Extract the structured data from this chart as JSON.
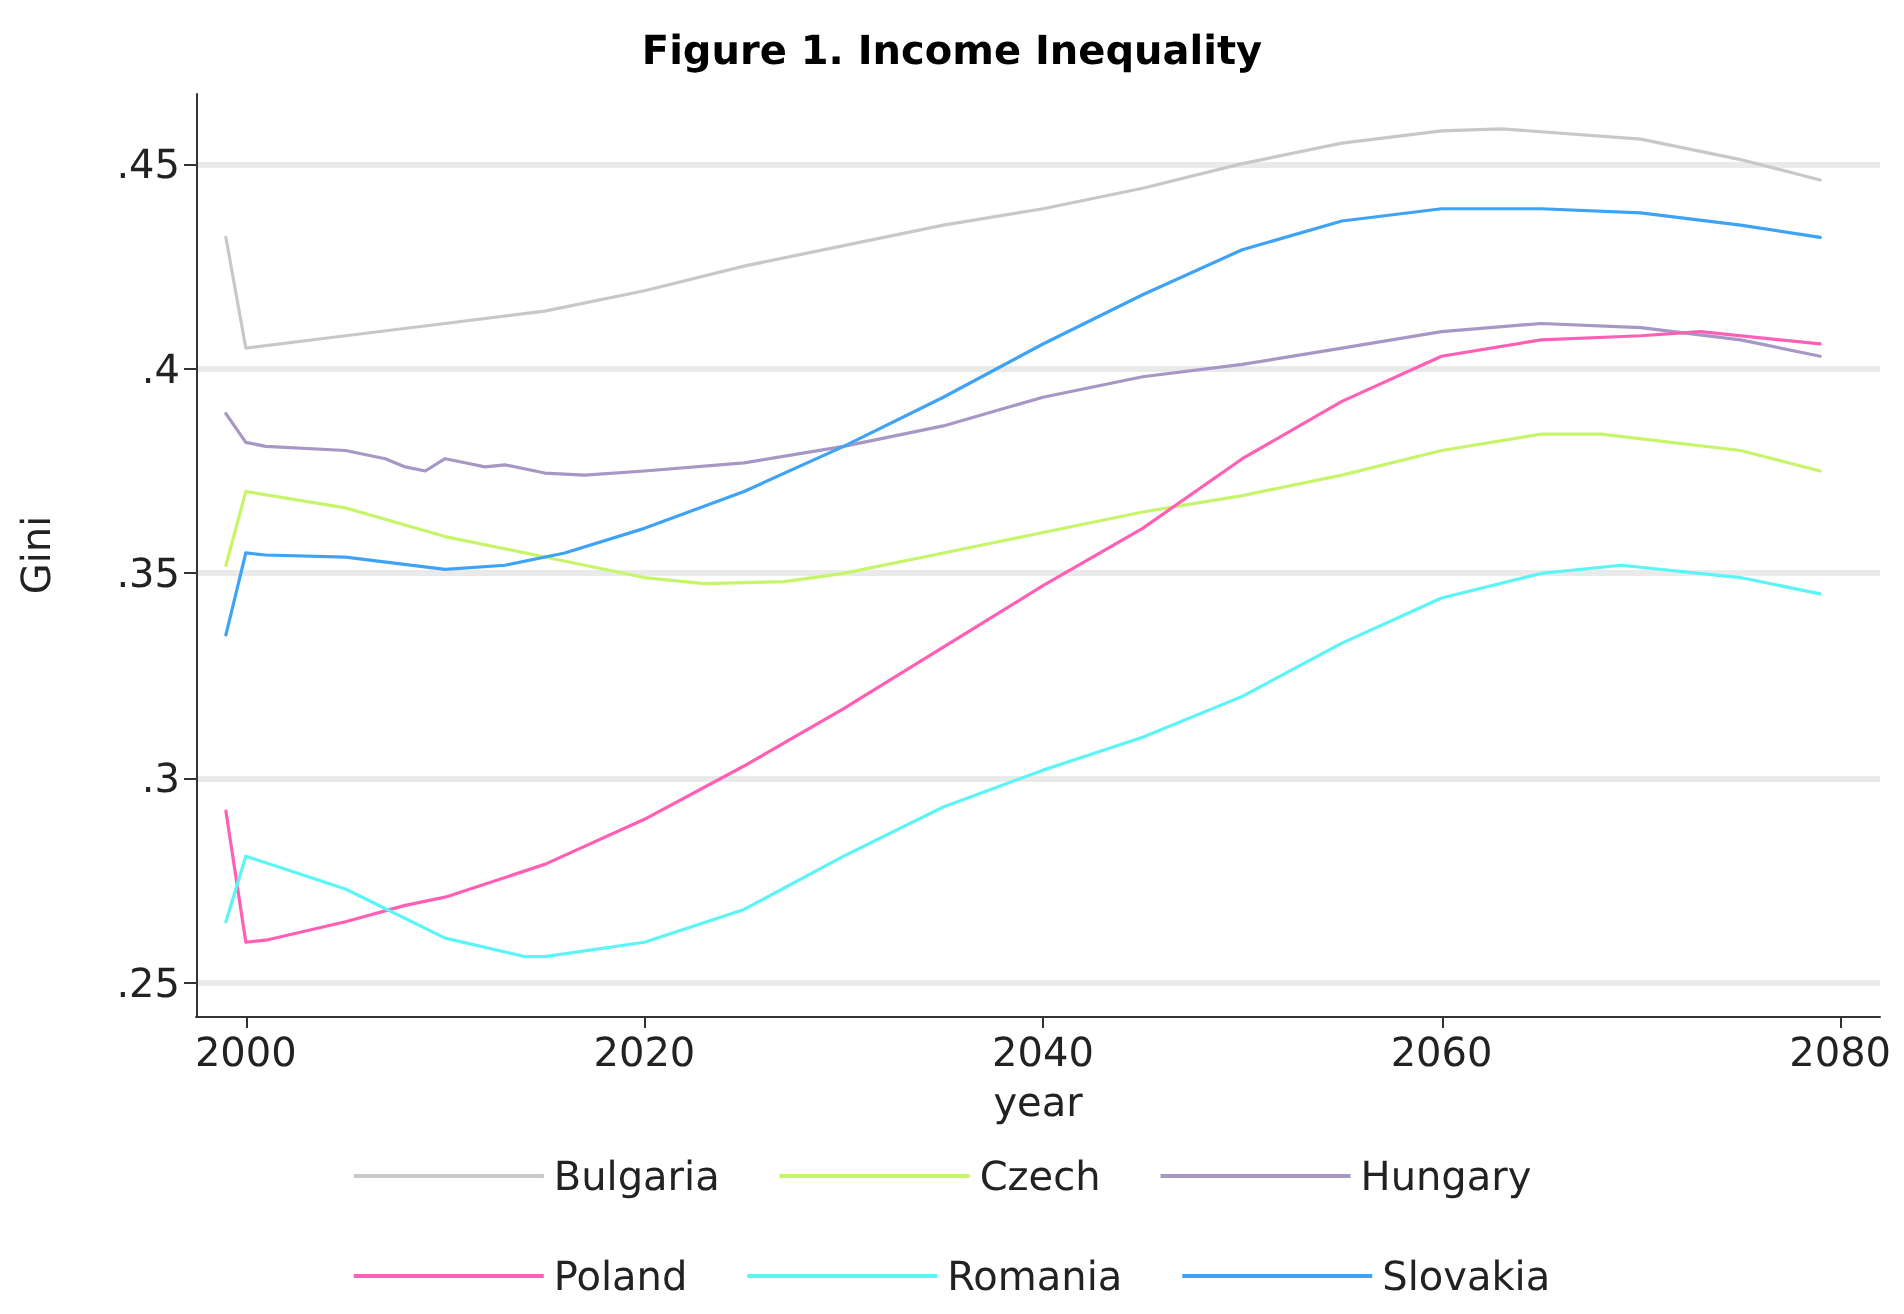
{
  "chart_data": {
    "type": "line",
    "title": "Figure 1. Income Inequality",
    "xlabel": "year",
    "ylabel": "Gini",
    "xlim": [
      1997.5,
      2082
    ],
    "xticks": [
      2000,
      2020,
      2040,
      2060,
      2080
    ],
    "ylim": [
      0.242,
      0.467
    ],
    "yticks": [
      {
        "value": 0.25,
        "label": ".25"
      },
      {
        "value": 0.3,
        "label": ".3"
      },
      {
        "value": 0.35,
        "label": ".35"
      },
      {
        "value": 0.4,
        "label": ".4"
      },
      {
        "value": 0.45,
        "label": ".45"
      }
    ],
    "grid": "y",
    "legend": "bottom",
    "marker": "none",
    "line_style": "solid",
    "series": [
      {
        "name": "Bulgaria",
        "color": "#c8c8c8",
        "x": [
          1999,
          2000,
          2005,
          2010,
          2015,
          2020,
          2025,
          2030,
          2035,
          2040,
          2045,
          2050,
          2055,
          2060,
          2063,
          2070,
          2075,
          2079
        ],
        "values": [
          0.432,
          0.405,
          0.408,
          0.411,
          0.414,
          0.419,
          0.425,
          0.43,
          0.435,
          0.439,
          0.444,
          0.45,
          0.455,
          0.458,
          0.4585,
          0.456,
          0.451,
          0.446
        ]
      },
      {
        "name": "Czech",
        "color": "#c6f56a",
        "x": [
          1999,
          2000,
          2005,
          2010,
          2015,
          2020,
          2023,
          2027,
          2030,
          2035,
          2040,
          2045,
          2050,
          2055,
          2060,
          2065,
          2068,
          2075,
          2079
        ],
        "values": [
          0.352,
          0.37,
          0.366,
          0.359,
          0.354,
          0.349,
          0.3475,
          0.348,
          0.35,
          0.355,
          0.36,
          0.365,
          0.369,
          0.374,
          0.38,
          0.384,
          0.384,
          0.38,
          0.375
        ]
      },
      {
        "name": "Hungary",
        "color": "#a896c4",
        "x": [
          1999,
          2000,
          2001,
          2005,
          2007,
          2008,
          2009,
          2010,
          2011,
          2012,
          2013,
          2015,
          2017,
          2020,
          2025,
          2030,
          2035,
          2040,
          2045,
          2050,
          2055,
          2060,
          2065,
          2070,
          2075,
          2079
        ],
        "values": [
          0.389,
          0.382,
          0.381,
          0.38,
          0.378,
          0.376,
          0.375,
          0.378,
          0.377,
          0.376,
          0.3765,
          0.3745,
          0.374,
          0.375,
          0.377,
          0.381,
          0.386,
          0.393,
          0.398,
          0.401,
          0.405,
          0.409,
          0.411,
          0.41,
          0.407,
          0.403
        ]
      },
      {
        "name": "Poland",
        "color": "#ff5fb4",
        "x": [
          1999,
          2000,
          2001,
          2005,
          2008,
          2010,
          2015,
          2020,
          2025,
          2030,
          2035,
          2040,
          2045,
          2050,
          2055,
          2060,
          2065,
          2070,
          2073,
          2079
        ],
        "values": [
          0.292,
          0.26,
          0.2605,
          0.265,
          0.269,
          0.271,
          0.279,
          0.29,
          0.303,
          0.317,
          0.332,
          0.347,
          0.361,
          0.378,
          0.392,
          0.403,
          0.407,
          0.408,
          0.409,
          0.406
        ]
      },
      {
        "name": "Romania",
        "color": "#5cf5f5",
        "x": [
          1999,
          2000,
          2005,
          2010,
          2014,
          2015,
          2020,
          2025,
          2030,
          2035,
          2040,
          2045,
          2050,
          2055,
          2060,
          2065,
          2069,
          2075,
          2079
        ],
        "values": [
          0.265,
          0.281,
          0.273,
          0.261,
          0.2565,
          0.2565,
          0.26,
          0.268,
          0.281,
          0.293,
          0.302,
          0.31,
          0.32,
          0.333,
          0.344,
          0.35,
          0.352,
          0.349,
          0.345
        ]
      },
      {
        "name": "Slovakia",
        "color": "#3fa3f5",
        "x": [
          1999,
          2000,
          2001,
          2005,
          2010,
          2013,
          2016,
          2020,
          2025,
          2030,
          2035,
          2040,
          2045,
          2050,
          2055,
          2060,
          2065,
          2070,
          2075,
          2079
        ],
        "values": [
          0.335,
          0.355,
          0.3545,
          0.354,
          0.351,
          0.352,
          0.355,
          0.361,
          0.37,
          0.381,
          0.393,
          0.406,
          0.418,
          0.429,
          0.436,
          0.439,
          0.439,
          0.438,
          0.435,
          0.432
        ]
      }
    ]
  }
}
